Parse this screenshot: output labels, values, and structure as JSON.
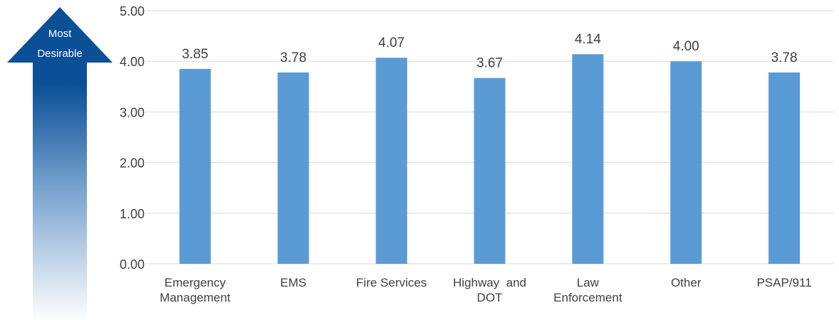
{
  "arrow": {
    "line1": "Most",
    "line2": "Desirable",
    "color_top": "#0b4f96",
    "color_bottom": "#ffffff"
  },
  "chart_data": {
    "type": "bar",
    "categories": [
      [
        "Emergency",
        "Management"
      ],
      [
        "EMS"
      ],
      [
        "Fire Services"
      ],
      [
        "Highway  and",
        "DOT"
      ],
      [
        "Law",
        "Enforcement"
      ],
      [
        "Other"
      ],
      [
        "PSAP/911"
      ]
    ],
    "values": [
      3.85,
      3.78,
      4.07,
      3.67,
      4.14,
      4.0,
      3.78
    ],
    "data_labels": [
      "3.85",
      "3.78",
      "4.07",
      "3.67",
      "4.14",
      "4.00",
      "3.78"
    ],
    "y_ticks": [
      "0.00",
      "1.00",
      "2.00",
      "3.00",
      "4.00",
      "5.00"
    ],
    "ylim": [
      0,
      5
    ],
    "grid": true,
    "bar_color": "#5b9bd5",
    "grid_color": "#d9d9d9"
  }
}
